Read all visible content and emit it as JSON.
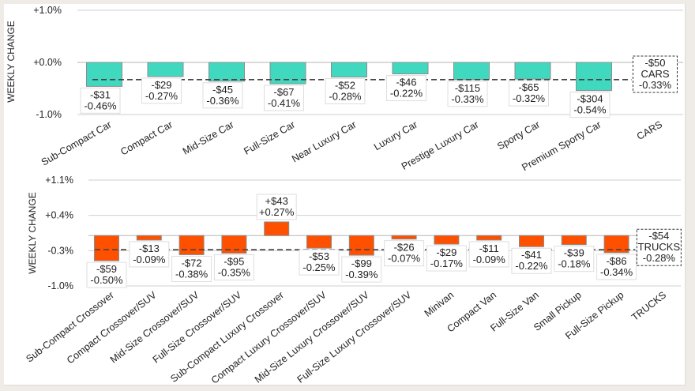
{
  "chart_data": [
    {
      "type": "bar",
      "title": "",
      "ylabel": "WEEKLY CHANGE",
      "xlabel": "",
      "ylim": [
        -1.0,
        1.0
      ],
      "yticks": [
        "+1.0%",
        "+0.0%",
        "-1.0%"
      ],
      "ytick_values": [
        1.0,
        0.0,
        -1.0
      ],
      "grid": true,
      "bar_color": "#40d9c0",
      "categories": [
        "Sub-Compact Car",
        "Compact Car",
        "Mid-Size Car",
        "Full-Size Car",
        "Near Luxury Car",
        "Luxury Car",
        "Prestige Luxury Car",
        "Sporty Car",
        "Premium Sporty Car",
        "CARS"
      ],
      "values": [
        -0.46,
        -0.27,
        -0.36,
        -0.41,
        -0.28,
        -0.22,
        -0.33,
        -0.32,
        -0.54,
        null
      ],
      "dollar_change": [
        "-$31",
        "-$29",
        "-$45",
        "-$67",
        "-$52",
        "-$46",
        "-$115",
        "-$65",
        "-$304",
        "-$50"
      ],
      "pct_labels": [
        "-0.46%",
        "-0.27%",
        "-0.36%",
        "-0.41%",
        "-0.28%",
        "-0.22%",
        "-0.33%",
        "-0.32%",
        "-0.54%",
        "-0.33%"
      ],
      "average": {
        "name": "CARS",
        "dollar": "-$50",
        "pct": "-0.33%",
        "value": -0.33
      }
    },
    {
      "type": "bar",
      "title": "",
      "ylabel": "WEEKLY CHANGE",
      "xlabel": "",
      "ylim": [
        -1.0,
        1.1
      ],
      "yticks": [
        "+1.1%",
        "+0.4%",
        "-0.3%",
        "-1.0%"
      ],
      "ytick_values": [
        1.1,
        0.4,
        -0.3,
        -1.0
      ],
      "grid": true,
      "bar_color": "#ff5000",
      "categories": [
        "Sub-Compact Crossover",
        "Compact Crossover/SUV",
        "Mid-Size Crossover/SUV",
        "Full-Size Crossover/SUV",
        "Sub-Compact Luxury Crossover",
        "Compact Luxury Crossover/SUV",
        "Mid-Size Luxury Crossover/SUV",
        "Full-Size Luxury Crossover/SUV",
        "Minivan",
        "Compact Van",
        "Full-Size Van",
        "Small Pickup",
        "Full-Size Pickup",
        "TRUCKS"
      ],
      "values": [
        -0.5,
        -0.09,
        -0.38,
        -0.35,
        0.27,
        -0.25,
        -0.39,
        -0.07,
        -0.17,
        -0.09,
        -0.22,
        -0.18,
        -0.34,
        null
      ],
      "dollar_change": [
        "-$59",
        "-$13",
        "-$72",
        "-$95",
        "+$43",
        "-$53",
        "-$99",
        "-$26",
        "-$29",
        "-$11",
        "-$41",
        "-$39",
        "-$86",
        "-$54"
      ],
      "pct_labels": [
        "-0.50%",
        "-0.09%",
        "-0.38%",
        "-0.35%",
        "+0.27%",
        "-0.25%",
        "-0.39%",
        "-0.07%",
        "-0.17%",
        "-0.09%",
        "-0.22%",
        "-0.18%",
        "-0.34%",
        "-0.28%"
      ],
      "average": {
        "name": "TRUCKS",
        "dollar": "-$54",
        "pct": "-0.28%",
        "value": -0.28
      }
    }
  ]
}
